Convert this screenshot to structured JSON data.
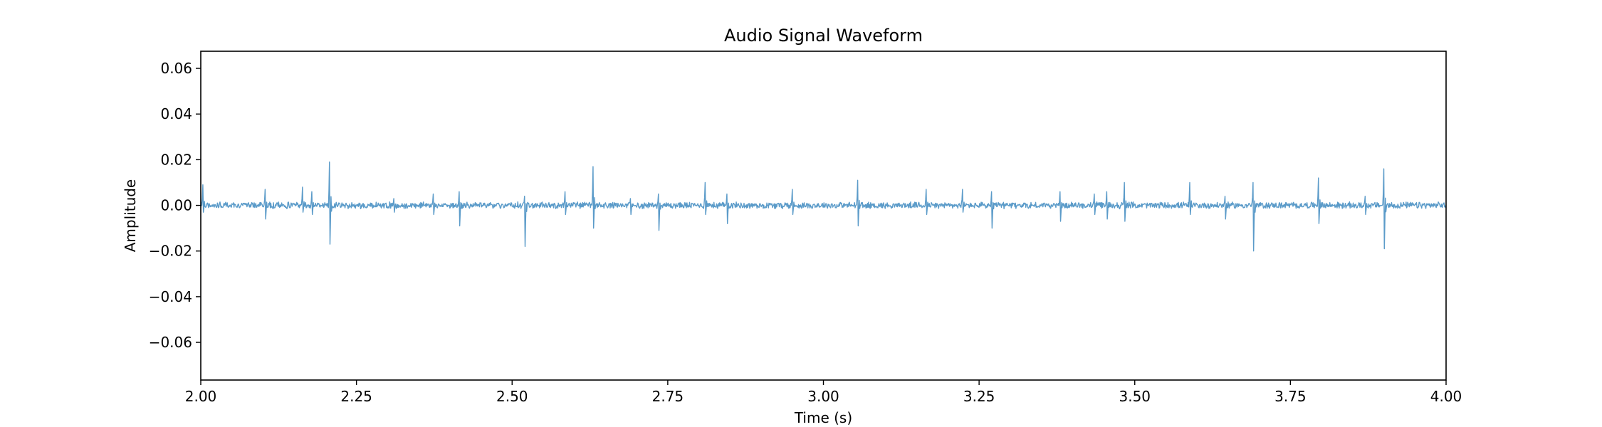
{
  "chart_data": {
    "type": "line",
    "title": "Audio Signal Waveform",
    "xlabel": "Time (s)",
    "ylabel": "Amplitude",
    "xlim": [
      2.0,
      4.0
    ],
    "ylim": [
      -0.0765,
      0.0675
    ],
    "x_ticks": [
      2.0,
      2.25,
      2.5,
      2.75,
      3.0,
      3.25,
      3.5,
      3.75,
      4.0
    ],
    "x_tick_labels": [
      "2.00",
      "2.25",
      "2.50",
      "2.75",
      "3.00",
      "3.25",
      "3.50",
      "3.75",
      "4.00"
    ],
    "y_ticks": [
      0.06,
      0.04,
      0.02,
      0.0,
      -0.02,
      -0.04,
      -0.06
    ],
    "y_tick_labels": [
      "0.06",
      "0.04",
      "0.02",
      "0.00",
      "−0.02",
      "−0.04",
      "−0.06"
    ],
    "grid": false,
    "series_color": "#5b9bc9",
    "noise_amplitude": 0.0012,
    "sample_count": 2400,
    "spikes": [
      {
        "x": 2.003,
        "up": 0.009,
        "down": -0.003
      },
      {
        "x": 2.103,
        "up": 0.007,
        "down": -0.006
      },
      {
        "x": 2.163,
        "up": 0.008,
        "down": -0.003
      },
      {
        "x": 2.178,
        "up": 0.006,
        "down": -0.004
      },
      {
        "x": 2.207,
        "up": 0.019,
        "down": -0.017
      },
      {
        "x": 2.31,
        "up": 0.003,
        "down": -0.003
      },
      {
        "x": 2.373,
        "up": 0.005,
        "down": -0.004
      },
      {
        "x": 2.415,
        "up": 0.006,
        "down": -0.009
      },
      {
        "x": 2.52,
        "up": 0.004,
        "down": -0.018
      },
      {
        "x": 2.585,
        "up": 0.006,
        "down": -0.004
      },
      {
        "x": 2.63,
        "up": 0.017,
        "down": -0.01
      },
      {
        "x": 2.69,
        "up": 0.003,
        "down": -0.004
      },
      {
        "x": 2.735,
        "up": 0.005,
        "down": -0.011
      },
      {
        "x": 2.81,
        "up": 0.01,
        "down": -0.004
      },
      {
        "x": 2.845,
        "up": 0.005,
        "down": -0.008
      },
      {
        "x": 2.95,
        "up": 0.007,
        "down": -0.004
      },
      {
        "x": 3.055,
        "up": 0.011,
        "down": -0.009
      },
      {
        "x": 3.165,
        "up": 0.007,
        "down": -0.004
      },
      {
        "x": 3.223,
        "up": 0.007,
        "down": -0.003
      },
      {
        "x": 3.27,
        "up": 0.006,
        "down": -0.01
      },
      {
        "x": 3.38,
        "up": 0.006,
        "down": -0.007
      },
      {
        "x": 3.435,
        "up": 0.005,
        "down": -0.004
      },
      {
        "x": 3.455,
        "up": 0.006,
        "down": -0.006
      },
      {
        "x": 3.483,
        "up": 0.01,
        "down": -0.007
      },
      {
        "x": 3.588,
        "up": 0.01,
        "down": -0.004
      },
      {
        "x": 3.645,
        "up": 0.004,
        "down": -0.006
      },
      {
        "x": 3.69,
        "up": 0.01,
        "down": -0.02
      },
      {
        "x": 3.795,
        "up": 0.012,
        "down": -0.008
      },
      {
        "x": 3.87,
        "up": 0.004,
        "down": -0.004
      },
      {
        "x": 3.9,
        "up": 0.016,
        "down": -0.019
      }
    ]
  }
}
